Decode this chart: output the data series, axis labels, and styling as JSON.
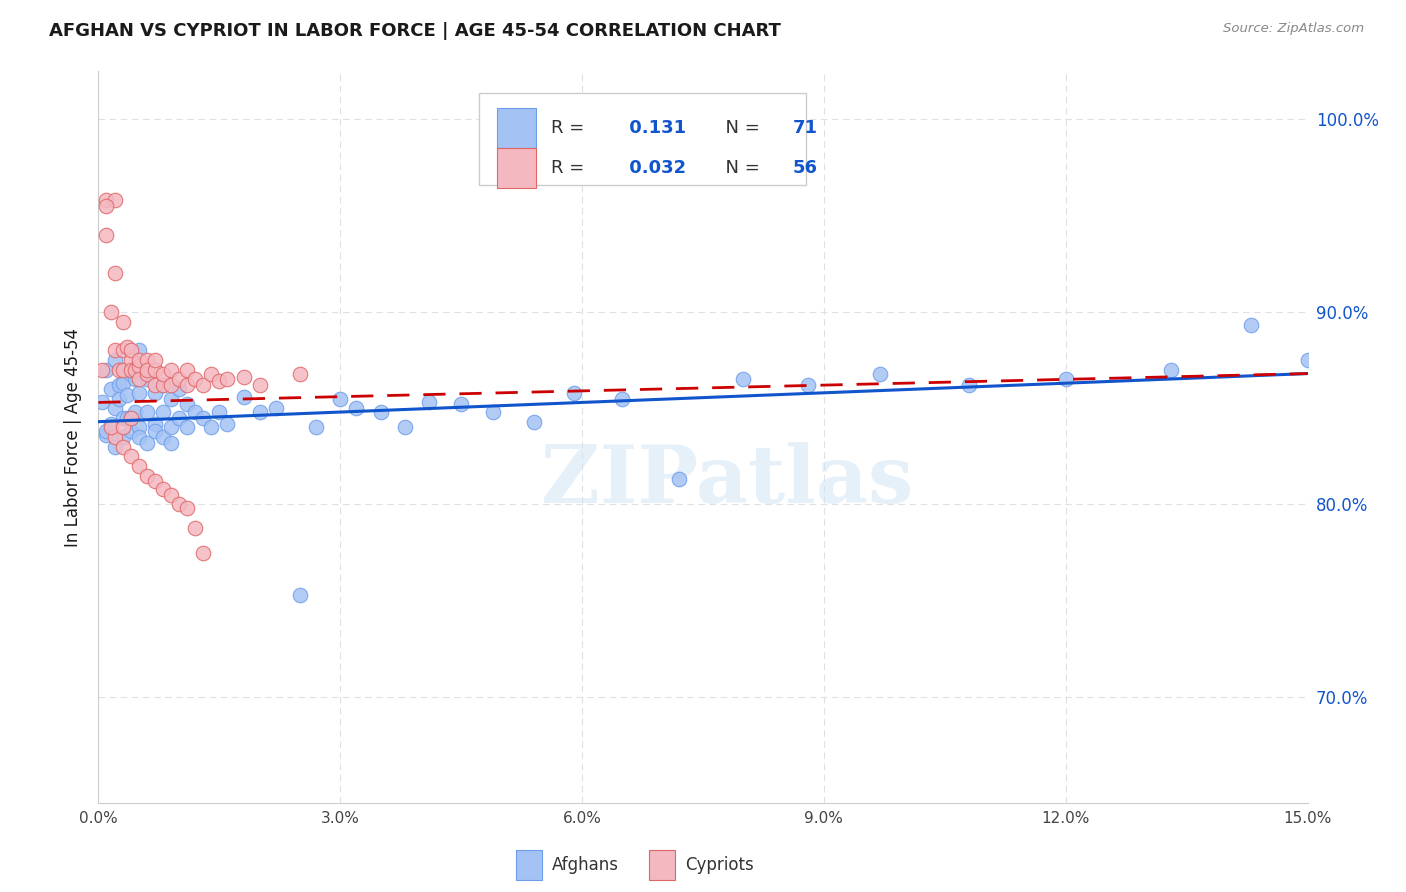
{
  "title": "AFGHAN VS CYPRIOT IN LABOR FORCE | AGE 45-54 CORRELATION CHART",
  "source": "Source: ZipAtlas.com",
  "ylabel": "In Labor Force | Age 45-54",
  "xlim": [
    0.0,
    0.15
  ],
  "ylim": [
    0.645,
    1.025
  ],
  "xticks": [
    0.0,
    0.03,
    0.06,
    0.09,
    0.12,
    0.15
  ],
  "xticklabels": [
    "0.0%",
    "3.0%",
    "6.0%",
    "9.0%",
    "12.0%",
    "15.0%"
  ],
  "yticks_right": [
    0.7,
    0.8,
    0.9,
    1.0
  ],
  "yticklabels_right": [
    "70.0%",
    "80.0%",
    "90.0%",
    "100.0%"
  ],
  "afghan_R": 0.131,
  "afghan_N": 71,
  "cypriot_R": 0.032,
  "cypriot_N": 56,
  "afghan_color": "#a4c2f4",
  "cypriot_color": "#f4b8c1",
  "afghan_edge": "#6d9eeb",
  "cypriot_edge": "#e06666",
  "trend_afghan_color": "#1155cc",
  "trend_cypriot_color": "#cc0000",
  "watermark": "ZIPatlas",
  "background_color": "#ffffff",
  "grid_color": "#e0e0e0",
  "title_color": "#1a1a1a",
  "source_color": "#888888",
  "ylabel_color": "#1a1a1a",
  "yaxis_right_color": "#1155cc",
  "n_label_color": "#1155cc",
  "legend_labels": [
    "Afghans",
    "Cypriots"
  ],
  "afghan_x": [
    0.0005,
    0.001,
    0.001,
    0.001,
    0.0015,
    0.0015,
    0.002,
    0.002,
    0.002,
    0.0025,
    0.0025,
    0.003,
    0.003,
    0.003,
    0.003,
    0.0035,
    0.0035,
    0.004,
    0.004,
    0.004,
    0.0045,
    0.0045,
    0.005,
    0.005,
    0.005,
    0.005,
    0.006,
    0.006,
    0.006,
    0.007,
    0.007,
    0.007,
    0.008,
    0.008,
    0.008,
    0.009,
    0.009,
    0.009,
    0.01,
    0.01,
    0.011,
    0.011,
    0.012,
    0.013,
    0.014,
    0.015,
    0.016,
    0.018,
    0.02,
    0.022,
    0.025,
    0.027,
    0.03,
    0.032,
    0.035,
    0.038,
    0.041,
    0.045,
    0.049,
    0.054,
    0.059,
    0.065,
    0.072,
    0.08,
    0.088,
    0.097,
    0.108,
    0.12,
    0.133,
    0.143,
    0.15
  ],
  "afghan_y": [
    0.845,
    0.855,
    0.84,
    0.835,
    0.848,
    0.853,
    0.84,
    0.845,
    0.855,
    0.84,
    0.85,
    0.838,
    0.843,
    0.85,
    0.857,
    0.842,
    0.848,
    0.838,
    0.845,
    0.852,
    0.84,
    0.847,
    0.835,
    0.84,
    0.848,
    0.855,
    0.84,
    0.847,
    0.855,
    0.838,
    0.845,
    0.852,
    0.837,
    0.843,
    0.85,
    0.84,
    0.847,
    0.853,
    0.838,
    0.845,
    0.842,
    0.85,
    0.846,
    0.848,
    0.843,
    0.851,
    0.847,
    0.85,
    0.848,
    0.853,
    0.848,
    0.852,
    0.85,
    0.854,
    0.85,
    0.855,
    0.852,
    0.857,
    0.854,
    0.858,
    0.855,
    0.86,
    0.856,
    0.862,
    0.86,
    0.864,
    0.862,
    0.865,
    0.864,
    0.868,
    0.87
  ],
  "afghan_y_scatter": [
    0.853,
    0.87,
    0.836,
    0.838,
    0.86,
    0.842,
    0.875,
    0.85,
    0.83,
    0.862,
    0.855,
    0.87,
    0.845,
    0.835,
    0.863,
    0.845,
    0.857,
    0.868,
    0.845,
    0.838,
    0.865,
    0.848,
    0.88,
    0.858,
    0.84,
    0.835,
    0.865,
    0.848,
    0.832,
    0.858,
    0.842,
    0.838,
    0.862,
    0.848,
    0.835,
    0.855,
    0.84,
    0.832,
    0.86,
    0.845,
    0.84,
    0.852,
    0.848,
    0.845,
    0.84,
    0.848,
    0.842,
    0.856,
    0.848,
    0.85,
    0.753,
    0.84,
    0.855,
    0.85,
    0.848,
    0.84,
    0.853,
    0.852,
    0.848,
    0.843,
    0.858,
    0.855,
    0.813,
    0.865,
    0.862,
    0.868,
    0.862,
    0.865,
    0.87,
    0.893,
    0.875
  ],
  "cypriot_x": [
    0.0005,
    0.001,
    0.001,
    0.0015,
    0.002,
    0.002,
    0.002,
    0.0025,
    0.003,
    0.003,
    0.003,
    0.0035,
    0.004,
    0.004,
    0.004,
    0.0045,
    0.005,
    0.005,
    0.005,
    0.006,
    0.006,
    0.006,
    0.007,
    0.007,
    0.007,
    0.008,
    0.008,
    0.009,
    0.009,
    0.01,
    0.011,
    0.011,
    0.012,
    0.013,
    0.014,
    0.015,
    0.016,
    0.018,
    0.02,
    0.025,
    0.002,
    0.003,
    0.004,
    0.005,
    0.006,
    0.007,
    0.008,
    0.009,
    0.01,
    0.011,
    0.012,
    0.013,
    0.001,
    0.0015,
    0.003,
    0.004
  ],
  "cypriot_y_scatter": [
    0.87,
    0.958,
    0.94,
    0.9,
    0.958,
    0.92,
    0.88,
    0.87,
    0.895,
    0.88,
    0.87,
    0.882,
    0.875,
    0.87,
    0.88,
    0.87,
    0.872,
    0.865,
    0.875,
    0.868,
    0.875,
    0.87,
    0.862,
    0.87,
    0.875,
    0.862,
    0.868,
    0.862,
    0.87,
    0.865,
    0.862,
    0.87,
    0.865,
    0.862,
    0.868,
    0.864,
    0.865,
    0.866,
    0.862,
    0.868,
    0.835,
    0.83,
    0.825,
    0.82,
    0.815,
    0.812,
    0.808,
    0.805,
    0.8,
    0.798,
    0.788,
    0.775,
    0.955,
    0.84,
    0.84,
    0.845
  ]
}
